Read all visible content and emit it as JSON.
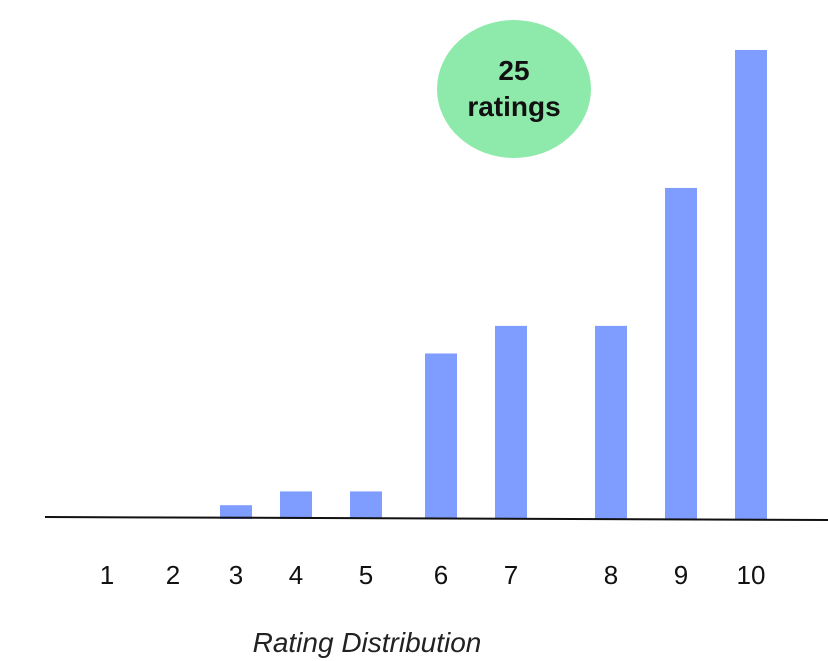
{
  "chart_data": {
    "type": "bar",
    "categories": [
      "1",
      "2",
      "3",
      "4",
      "5",
      "6",
      "7",
      "8",
      "9",
      "10"
    ],
    "values": [
      0,
      0,
      0.5,
      1,
      1,
      6,
      7,
      7,
      12,
      17
    ],
    "xlabel": "Rating Distribution",
    "ylabel": "",
    "ylim": [
      0,
      17
    ],
    "grid": false,
    "legend": "none",
    "bar_color": "#7f9cff",
    "badge": {
      "count": "25",
      "unit": "ratings",
      "color": "#8eeaaa"
    }
  }
}
